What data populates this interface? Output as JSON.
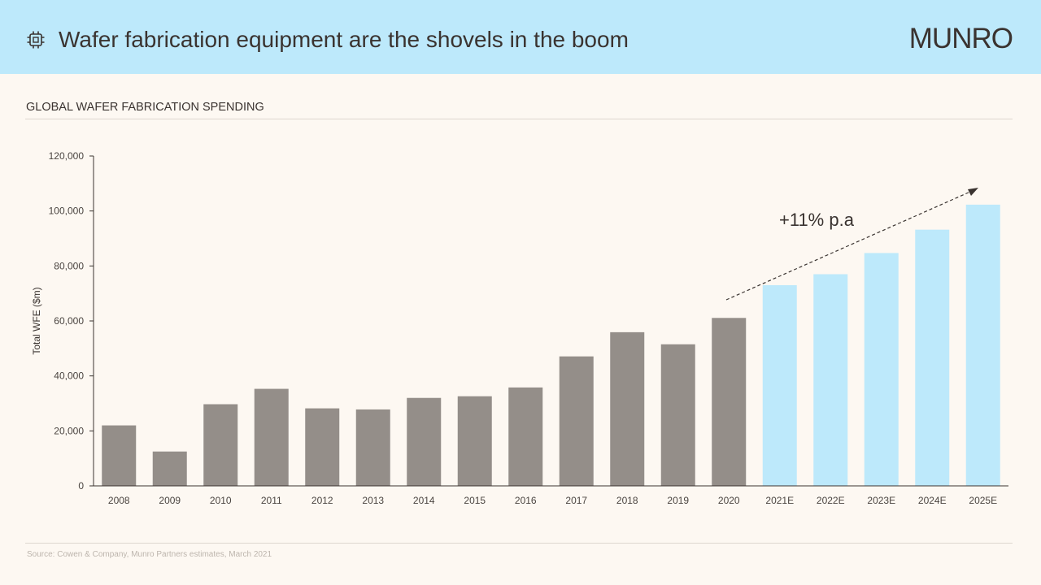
{
  "header": {
    "title": "Wafer fabrication equipment are the shovels in the boom",
    "logo": "MUNRO",
    "icon": "chip-icon"
  },
  "footer": {
    "source": "Source: Cowen & Company,  Munro Partners estimates, March 2021"
  },
  "colors": {
    "header_bg": "#bde9fb",
    "actual_bar": "#948e89",
    "estimate_bar": "#bde9fb"
  },
  "chart_data": {
    "type": "bar",
    "title": "GLOBAL WAFER FABRICATION  SPENDING",
    "ylabel": "Total WFE ($m)",
    "xlabel": "",
    "ylim": [
      0,
      120000
    ],
    "yticks": [
      "0",
      "20,000",
      "40,000",
      "60,000",
      "80,000",
      "100,000",
      "120,000"
    ],
    "categories": [
      "2008",
      "2009",
      "2010",
      "2011",
      "2012",
      "2013",
      "2014",
      "2015",
      "2016",
      "2017",
      "2018",
      "2019",
      "2020",
      "2021E",
      "2022E",
      "2023E",
      "2024E",
      "2025E"
    ],
    "values": [
      22000,
      12500,
      29700,
      35300,
      28200,
      27800,
      32000,
      32600,
      35800,
      47100,
      55900,
      51500,
      61100,
      73000,
      77000,
      84700,
      93200,
      102300
    ],
    "estimate_flags": [
      false,
      false,
      false,
      false,
      false,
      false,
      false,
      false,
      false,
      false,
      false,
      false,
      false,
      true,
      true,
      true,
      true,
      true
    ],
    "annotation": "+11% p.a",
    "grid": false
  }
}
